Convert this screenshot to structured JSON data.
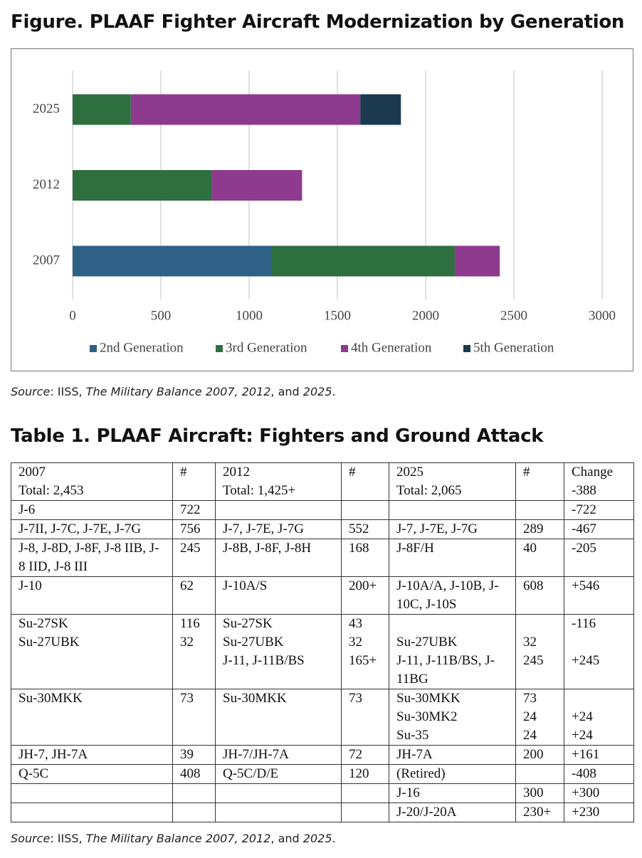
{
  "figure_title": "Figure. PLAAF Fighter Aircraft Modernization by Generation",
  "chart_data": {
    "type": "stacked-bar-horizontal",
    "categories": [
      "2007",
      "2012",
      "2025"
    ],
    "series": [
      {
        "name": "2nd Generation",
        "color": "#2e6185",
        "values": [
          1125,
          null,
          null
        ]
      },
      {
        "name": "3rd Generation",
        "color": "#2e6f40",
        "values": [
          1040,
          790,
          330
        ]
      },
      {
        "name": "4th Generation",
        "color": "#8e3a8e",
        "values": [
          255,
          510,
          1300
        ]
      },
      {
        "name": "5th Generation",
        "color": "#1b3a4f",
        "values": [
          null,
          null,
          230
        ]
      }
    ],
    "xlim": [
      0,
      3000
    ],
    "xticks": [
      0,
      500,
      1000,
      1500,
      2000,
      2500,
      3000
    ],
    "grid": true,
    "legend": "bottom"
  },
  "source": [
    "Source",
    ": IISS, ",
    "The Military Balance 2007, 2012",
    ", and ",
    "2025",
    "."
  ],
  "table_title": "Table 1. PLAAF Aircraft: Fighters and Ground Attack",
  "table": {
    "rows": [
      [
        "2007\nTotal: 2,453",
        "#",
        "2012\nTotal: 1,425+",
        "#",
        "2025\nTotal: 2,065",
        "#",
        "Change\n-388"
      ],
      [
        "J-6",
        "722",
        null,
        null,
        null,
        null,
        "-722"
      ],
      [
        "J-7II, J-7C, J-7E, J-7G",
        "756",
        "J-7, J-7E, J-7G",
        "552",
        "J-7, J-7E, J-7G",
        "289",
        "-467"
      ],
      [
        "J-8, J-8D, J-8F, J-8 IIB, J-8 IID, J-8 III",
        "245",
        "J-8B, J-8F, J-8H",
        "168",
        "J-8F/H",
        "40",
        "-205"
      ],
      [
        "J-10",
        "62",
        "J-10A/S",
        "200+",
        "J-10A/A, J-10B, J-10C, J-10S",
        "608",
        "+546"
      ],
      [
        "Su-27SK\nSu-27UBK",
        "116\n32",
        "Su-27SK\nSu-27UBK\nJ-11, J-11B/BS",
        "43\n32\n165+",
        "\nSu-27UBK\nJ-11, J-11B/BS, J-11BG",
        "\n32\n245",
        "-116\n\n+245"
      ],
      [
        "Su-30MKK",
        "73",
        "Su-30MKK",
        "73",
        "Su-30MKK\nSu-30MK2\nSu-35",
        "73\n24\n24",
        "\n+24\n+24"
      ],
      [
        "JH-7, JH-7A",
        "39",
        "JH-7/JH-7A",
        "72",
        "JH-7A",
        "200",
        "+161"
      ],
      [
        "Q-5C",
        "408",
        "Q-5C/D/E",
        "120",
        "(Retired)",
        null,
        "-408"
      ],
      [
        null,
        null,
        null,
        null,
        "J-16",
        "300",
        "+300"
      ],
      [
        null,
        null,
        null,
        null,
        "J-20/J-20A",
        "230+",
        "+230"
      ]
    ]
  }
}
